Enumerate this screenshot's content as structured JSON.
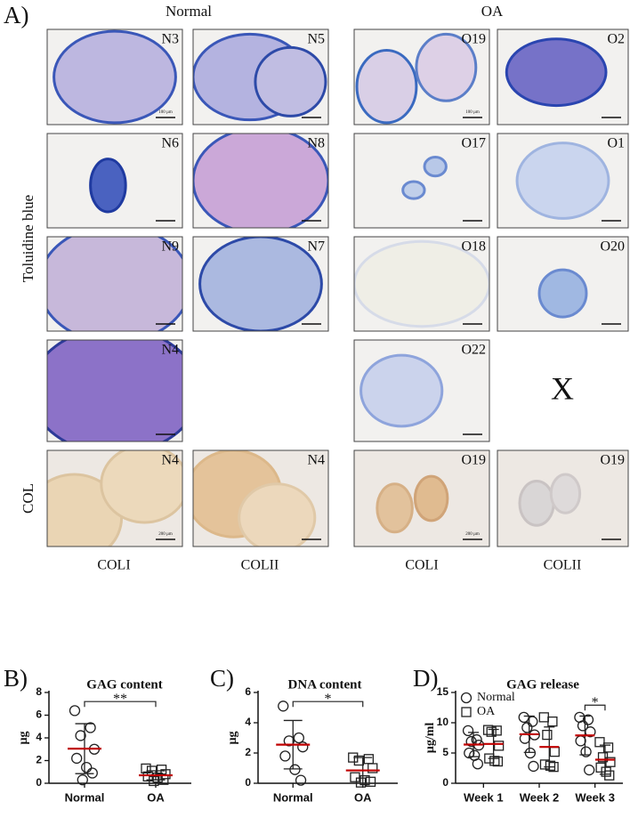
{
  "panel_a": {
    "label": "A)",
    "normal": "Normal",
    "oa": "OA",
    "stain_row": "Toluidine blue",
    "col_row": "COL",
    "tiles": [
      {
        "label": "N3",
        "scale": "100 µm"
      },
      {
        "label": "N5"
      },
      {
        "label": "O19",
        "scale": "100 µm"
      },
      {
        "label": "O2"
      },
      {
        "label": "N6"
      },
      {
        "label": "N8"
      },
      {
        "label": "O17"
      },
      {
        "label": "O1"
      },
      {
        "label": "N9"
      },
      {
        "label": "N7"
      },
      {
        "label": "O18"
      },
      {
        "label": "O20"
      },
      {
        "label": "N4"
      },
      {
        "label": "O22"
      },
      {
        "label": "N4",
        "scale": "200 µm"
      },
      {
        "label": "N4"
      },
      {
        "label": "O19",
        "scale": "200 µm"
      },
      {
        "label": "O19"
      }
    ],
    "missing": "X",
    "col_labels": [
      "COLI",
      "COLII",
      "COLI",
      "COLII"
    ]
  },
  "chart_data": [
    {
      "type": "dot",
      "label": "B)",
      "title": "GAG content",
      "y_label": "µg",
      "categories": [
        "Normal",
        "OA"
      ],
      "groups": [
        {
          "marker": "circle",
          "values": [
            6.4,
            4.9,
            4.2,
            3.0,
            2.2,
            1.4,
            0.9,
            0.3
          ],
          "mean": 3.05,
          "sd": 2.2
        },
        {
          "marker": "square",
          "values": [
            1.3,
            1.2,
            1.1,
            0.8,
            0.6,
            0.5,
            0.3,
            0.2
          ],
          "mean": 0.7,
          "sd": 0.4
        }
      ],
      "ylim": [
        0,
        8
      ],
      "yticks": [
        0,
        2,
        4,
        6,
        8
      ],
      "mean_color": "#c00000",
      "annotations": [
        {
          "text": "**",
          "from": 0,
          "to": 1
        }
      ]
    },
    {
      "type": "dot",
      "label": "C)",
      "title": "DNA content",
      "y_label": "µg",
      "categories": [
        "Normal",
        "OA"
      ],
      "groups": [
        {
          "marker": "circle",
          "values": [
            5.1,
            3.0,
            2.8,
            2.4,
            1.8,
            0.9,
            0.2
          ],
          "mean": 2.55,
          "sd": 1.6
        },
        {
          "marker": "square",
          "values": [
            1.7,
            1.6,
            1.5,
            1.0,
            0.4,
            0.2,
            0.1,
            0.05
          ],
          "mean": 0.85,
          "sd": 0.85
        }
      ],
      "ylim": [
        0,
        6
      ],
      "yticks": [
        0,
        2,
        4,
        6
      ],
      "mean_color": "#c00000",
      "annotations": [
        {
          "text": "*",
          "from": 0,
          "to": 1
        }
      ]
    },
    {
      "type": "dot",
      "label": "D)",
      "title": "GAG release",
      "y_label": "µg/ml",
      "categories": [
        "Week 1",
        "Week 2",
        "Week 3"
      ],
      "series": [
        {
          "name": "Normal",
          "marker": "circle",
          "values": [
            [
              8.7,
              7.2,
              6.9,
              6.3,
              5.0,
              4.6,
              3.2
            ],
            [
              10.9,
              10.2,
              9.2,
              8.0,
              7.4,
              5.0,
              2.8
            ],
            [
              10.9,
              10.5,
              9.5,
              8.5,
              7.0,
              5.2,
              2.2
            ]
          ],
          "mean": [
            6.4,
            8.1,
            7.9
          ],
          "sd": [
            2.0,
            3.0,
            3.2
          ]
        },
        {
          "name": "OA",
          "marker": "square",
          "values": [
            [
              8.8,
              8.7,
              8.5,
              6.2,
              4.1,
              3.7,
              3.6
            ],
            [
              10.9,
              10.2,
              8.0,
              5.2,
              3.1,
              2.9,
              2.7
            ],
            [
              6.8,
              5.9,
              4.3,
              3.5,
              2.6,
              1.9,
              1.3
            ]
          ],
          "mean": [
            6.5,
            6.0,
            3.9
          ],
          "sd": [
            2.4,
            3.3,
            2.4
          ]
        }
      ],
      "ylim": [
        0,
        15
      ],
      "yticks": [
        0,
        5,
        10,
        15
      ],
      "mean_color": "#c00000",
      "legend": "upper left",
      "annotations": [
        {
          "text": "*",
          "category": 2
        }
      ]
    }
  ]
}
